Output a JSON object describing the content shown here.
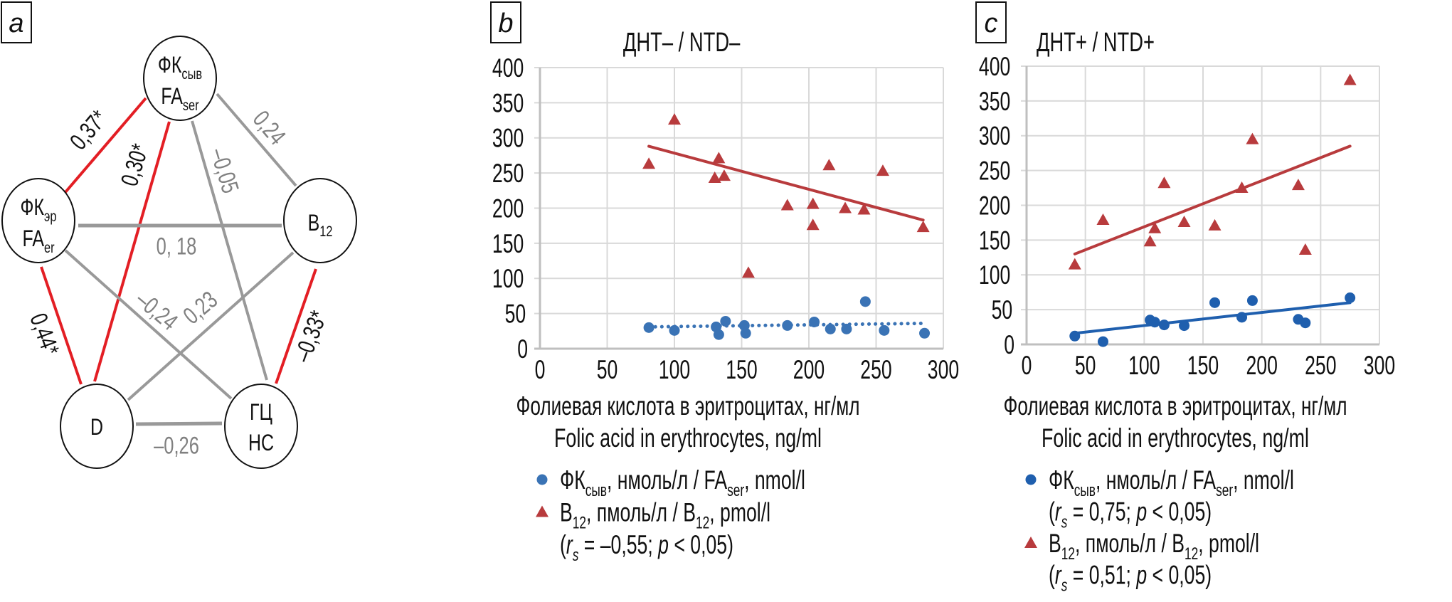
{
  "diagram": {
    "panel_label": "a",
    "nodes": {
      "fa_ser": {
        "line1": "ФК",
        "sub1": "сыв",
        "line2": "FA",
        "sub2": "ser"
      },
      "fa_er": {
        "line1": "ФК",
        "sub1": "эр",
        "line2": "FA",
        "sub2": "er"
      },
      "b12": {
        "line1": "B",
        "sub1": "12"
      },
      "d": {
        "line1": "D"
      },
      "hc": {
        "line1": "ГЦ",
        "line2": "HC"
      }
    },
    "edges": {
      "faer_faser": {
        "value": "0,37*",
        "significant": true
      },
      "faser_d": {
        "value": "0,30*",
        "significant": true
      },
      "faser_hc": {
        "value": "–0,05",
        "significant": false
      },
      "faser_b12": {
        "value": "0,24",
        "significant": false
      },
      "faer_b12": {
        "value": "0, 18",
        "significant": false
      },
      "faer_hc": {
        "value": "–0,24",
        "significant": false
      },
      "b12_d": {
        "value": "0,23",
        "significant": false
      },
      "faer_d": {
        "value": "0,44*",
        "significant": true
      },
      "b12_hc": {
        "value": "–0,33*",
        "significant": true
      },
      "d_hc": {
        "value": "–0,26",
        "significant": false
      }
    },
    "colors": {
      "significant": "#e31e24",
      "nonsignificant": "#999999"
    }
  },
  "chart_data": [
    {
      "panel": "b",
      "type": "scatter",
      "title": "ДНТ– / NTD–",
      "xlabel": [
        "Фолиевая кислота в эритроцитах, нг/мл",
        "Folic acid in erythrocytes, ng/ml"
      ],
      "xlim": [
        0,
        300
      ],
      "ylim": [
        0,
        400
      ],
      "xticks": [
        0,
        50,
        100,
        150,
        200,
        250,
        300
      ],
      "yticks": [
        0,
        50,
        100,
        150,
        200,
        250,
        300,
        350,
        400
      ],
      "grid": true,
      "series": [
        {
          "name": "ФКсыв, нмоль/л / FAser, nmol/l",
          "marker": "circle",
          "color": "#3a73b5",
          "points": [
            [
              81,
              30
            ],
            [
              100,
              26
            ],
            [
              131,
              31
            ],
            [
              133,
              20
            ],
            [
              138,
              39
            ],
            [
              152,
              33
            ],
            [
              153,
              22
            ],
            [
              184,
              33
            ],
            [
              204,
              38
            ],
            [
              216,
              28
            ],
            [
              228,
              28
            ],
            [
              242,
              67
            ],
            [
              256,
              26
            ],
            [
              286,
              22
            ]
          ],
          "trend": {
            "style": "dotted",
            "from": [
              81,
              31
            ],
            "to": [
              285,
              36
            ]
          }
        },
        {
          "name": "B12, пмоль/л / B12, pmol/l",
          "marker": "triangle",
          "color": "#b83b3d",
          "points": [
            [
              81,
              262
            ],
            [
              100,
              325
            ],
            [
              133,
              270
            ],
            [
              130,
              242
            ],
            [
              137,
              245
            ],
            [
              155,
              107
            ],
            [
              184,
              203
            ],
            [
              203,
              205
            ],
            [
              203,
              175
            ],
            [
              215,
              260
            ],
            [
              227,
              199
            ],
            [
              241,
              197
            ],
            [
              255,
              252
            ],
            [
              285,
              172
            ]
          ],
          "trend": {
            "style": "solid",
            "from": [
              81,
              288
            ],
            "to": [
              285,
              183
            ]
          }
        }
      ],
      "legend": [
        {
          "marker": "circle",
          "series": 0,
          "lines": [
            [
              {
                "t": "ФК"
              },
              {
                "t": "сыв",
                "sub": true
              },
              {
                "t": ", нмоль/л / FA"
              },
              {
                "t": "ser",
                "sub": true
              },
              {
                "t": ", nmol/l"
              }
            ]
          ]
        },
        {
          "marker": "triangle",
          "series": 1,
          "lines": [
            [
              {
                "t": "B"
              },
              {
                "t": "12",
                "sub": true
              },
              {
                "t": ", пмоль/л / B"
              },
              {
                "t": "12",
                "sub": true
              },
              {
                "t": ", pmol/l"
              }
            ],
            [
              {
                "t": "("
              },
              {
                "t": "r",
                "i": true
              },
              {
                "t": "s",
                "i": true,
                "sub": true
              },
              {
                "t": " = –0,55; "
              },
              {
                "t": "p",
                "i": true
              },
              {
                "t": " < 0,05)"
              }
            ]
          ]
        }
      ]
    },
    {
      "panel": "c",
      "type": "scatter",
      "title": "ДНТ+ / NTD+",
      "xlabel": [
        "Фолиевая кислота в эритроцитах, нг/мл",
        "Folic acid in erythrocytes, ng/ml"
      ],
      "xlim": [
        0,
        300
      ],
      "ylim": [
        0,
        400
      ],
      "xticks": [
        0,
        50,
        100,
        150,
        200,
        250,
        300
      ],
      "yticks": [
        0,
        50,
        100,
        150,
        200,
        250,
        300,
        350,
        400
      ],
      "grid": true,
      "series": [
        {
          "name": "ФКсыв, нмоль/л / FAser, nmol/l",
          "marker": "circle",
          "color": "#1f5fae",
          "points": [
            [
              41,
              12
            ],
            [
              65,
              4
            ],
            [
              105,
              35
            ],
            [
              109,
              32
            ],
            [
              117,
              28
            ],
            [
              134,
              27
            ],
            [
              160,
              60
            ],
            [
              183,
              39
            ],
            [
              192,
              63
            ],
            [
              231,
              36
            ],
            [
              237,
              31
            ],
            [
              275,
              67
            ]
          ],
          "trend": {
            "style": "solid",
            "from": [
              41,
              16
            ],
            "to": [
              275,
              60
            ]
          }
        },
        {
          "name": "B12, пмоль/л / B12, pmol/l",
          "marker": "triangle",
          "color": "#b83b3d",
          "points": [
            [
              41,
              114
            ],
            [
              65,
              178
            ],
            [
              105,
              147
            ],
            [
              109,
              166
            ],
            [
              117,
              231
            ],
            [
              134,
              175
            ],
            [
              160,
              170
            ],
            [
              183,
              224
            ],
            [
              192,
              294
            ],
            [
              231,
              228
            ],
            [
              237,
              135
            ],
            [
              275,
              379
            ]
          ],
          "trend": {
            "style": "solid",
            "from": [
              41,
              130
            ],
            "to": [
              275,
              285
            ]
          }
        }
      ],
      "legend": [
        {
          "marker": "circle",
          "series": 0,
          "lines": [
            [
              {
                "t": "ФК"
              },
              {
                "t": "сыв",
                "sub": true
              },
              {
                "t": ", нмоль/л / FA"
              },
              {
                "t": "ser",
                "sub": true
              },
              {
                "t": ", nmol/l"
              }
            ],
            [
              {
                "t": "("
              },
              {
                "t": "r",
                "i": true
              },
              {
                "t": "s",
                "i": true,
                "sub": true
              },
              {
                "t": " = 0,75; "
              },
              {
                "t": "p",
                "i": true
              },
              {
                "t": " < 0,05)"
              }
            ]
          ]
        },
        {
          "marker": "triangle",
          "series": 1,
          "lines": [
            [
              {
                "t": "B"
              },
              {
                "t": "12",
                "sub": true
              },
              {
                "t": ", пмоль/л / B"
              },
              {
                "t": "12",
                "sub": true
              },
              {
                "t": ", pmol/l"
              }
            ],
            [
              {
                "t": "("
              },
              {
                "t": "r",
                "i": true
              },
              {
                "t": "s",
                "i": true,
                "sub": true
              },
              {
                "t": " = 0,51; "
              },
              {
                "t": "p",
                "i": true
              },
              {
                "t": " < 0,05)"
              }
            ]
          ]
        }
      ]
    }
  ]
}
